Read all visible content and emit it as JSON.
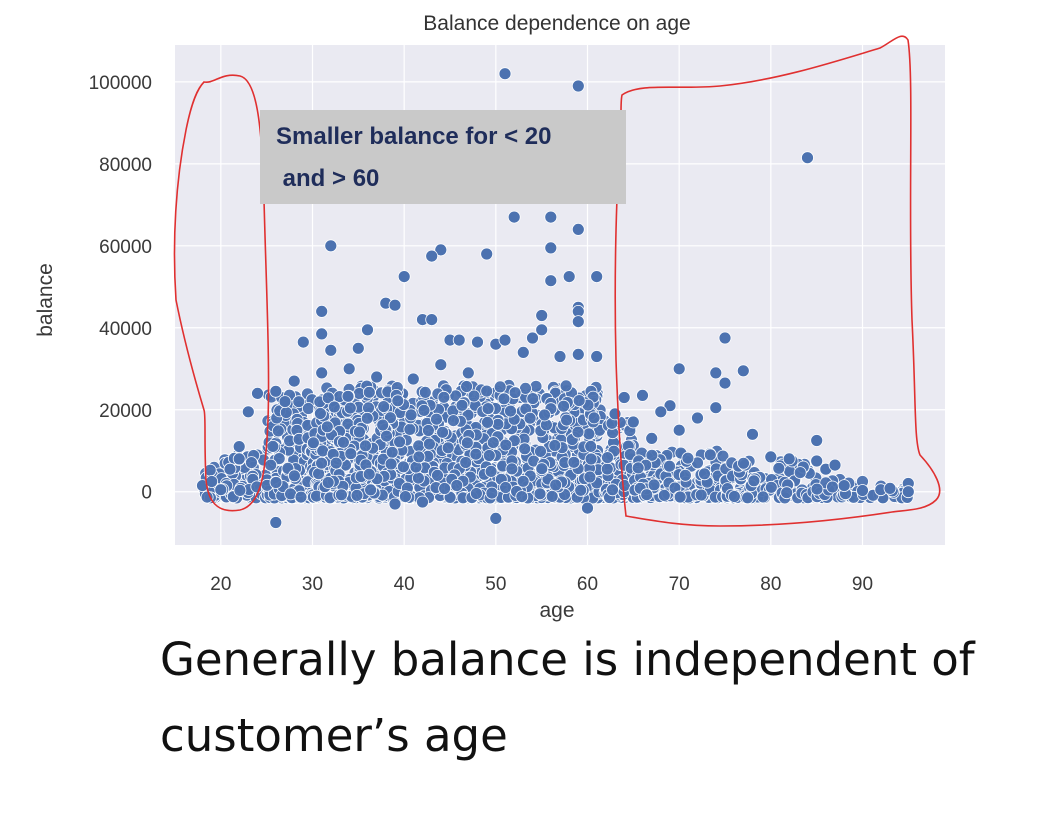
{
  "chart_data": {
    "type": "scatter",
    "title": "Balance dependence on age",
    "xlabel": "age",
    "ylabel": "balance",
    "xlim": [
      15,
      99
    ],
    "ylim": [
      -13000,
      109000
    ],
    "xticks": [
      20,
      30,
      40,
      50,
      60,
      70,
      80,
      90
    ],
    "yticks": [
      0,
      20000,
      40000,
      60000,
      80000,
      100000
    ],
    "grid": true,
    "background": "#eaeaf2",
    "marker_color": "#4c72b0",
    "dense_band": [
      {
        "age_from": 18,
        "age_to": 20,
        "balance_max": 6000
      },
      {
        "age_from": 20,
        "age_to": 25,
        "balance_max": 9000
      },
      {
        "age_from": 25,
        "age_to": 30,
        "balance_max": 24000
      },
      {
        "age_from": 30,
        "age_to": 62,
        "balance_max": 26000
      },
      {
        "age_from": 62,
        "age_to": 65,
        "balance_max": 17000
      },
      {
        "age_from": 65,
        "age_to": 75,
        "balance_max": 10000
      },
      {
        "age_from": 75,
        "age_to": 85,
        "balance_max": 7500
      },
      {
        "age_from": 85,
        "age_to": 90,
        "balance_max": 3000
      },
      {
        "age_from": 90,
        "age_to": 95,
        "balance_max": 1500
      }
    ],
    "points": [
      {
        "x": 51,
        "y": 102000
      },
      {
        "x": 59,
        "y": 99000
      },
      {
        "x": 84,
        "y": 81500
      },
      {
        "x": 52,
        "y": 67000
      },
      {
        "x": 56,
        "y": 67000
      },
      {
        "x": 59,
        "y": 64000
      },
      {
        "x": 32,
        "y": 60000
      },
      {
        "x": 44,
        "y": 59000
      },
      {
        "x": 56,
        "y": 59500
      },
      {
        "x": 43,
        "y": 57500
      },
      {
        "x": 49,
        "y": 58000
      },
      {
        "x": 40,
        "y": 52500
      },
      {
        "x": 56,
        "y": 51500
      },
      {
        "x": 58,
        "y": 52500
      },
      {
        "x": 61,
        "y": 52500
      },
      {
        "x": 59,
        "y": 45000
      },
      {
        "x": 59,
        "y": 44000
      },
      {
        "x": 59,
        "y": 41500
      },
      {
        "x": 38,
        "y": 46000
      },
      {
        "x": 39,
        "y": 45500
      },
      {
        "x": 42,
        "y": 42000
      },
      {
        "x": 43,
        "y": 42000
      },
      {
        "x": 55,
        "y": 43000
      },
      {
        "x": 31,
        "y": 44000
      },
      {
        "x": 36,
        "y": 39500
      },
      {
        "x": 55,
        "y": 39500
      },
      {
        "x": 31,
        "y": 38500
      },
      {
        "x": 54,
        "y": 37500
      },
      {
        "x": 29,
        "y": 36500
      },
      {
        "x": 35,
        "y": 35000
      },
      {
        "x": 32,
        "y": 34500
      },
      {
        "x": 45,
        "y": 37000
      },
      {
        "x": 46,
        "y": 37000
      },
      {
        "x": 48,
        "y": 36500
      },
      {
        "x": 50,
        "y": 36000
      },
      {
        "x": 51,
        "y": 37000
      },
      {
        "x": 53,
        "y": 34000
      },
      {
        "x": 57,
        "y": 33000
      },
      {
        "x": 59,
        "y": 33500
      },
      {
        "x": 61,
        "y": 33000
      },
      {
        "x": 75,
        "y": 37500
      },
      {
        "x": 70,
        "y": 30000
      },
      {
        "x": 74,
        "y": 29000
      },
      {
        "x": 75,
        "y": 26500
      },
      {
        "x": 77,
        "y": 29500
      },
      {
        "x": 74,
        "y": 20500
      },
      {
        "x": 72,
        "y": 18000
      },
      {
        "x": 69,
        "y": 21000
      },
      {
        "x": 68,
        "y": 19500
      },
      {
        "x": 66,
        "y": 23500
      },
      {
        "x": 64,
        "y": 23000
      },
      {
        "x": 63,
        "y": 19000
      },
      {
        "x": 65,
        "y": 17000
      },
      {
        "x": 70,
        "y": 15000
      },
      {
        "x": 78,
        "y": 14000
      },
      {
        "x": 85,
        "y": 12500
      },
      {
        "x": 67,
        "y": 13000
      },
      {
        "x": 23,
        "y": 19500
      },
      {
        "x": 24,
        "y": 24000
      },
      {
        "x": 26,
        "y": 24500
      },
      {
        "x": 27,
        "y": 22000
      },
      {
        "x": 28,
        "y": 27000
      },
      {
        "x": 31,
        "y": 29000
      },
      {
        "x": 34,
        "y": 30000
      },
      {
        "x": 37,
        "y": 28000
      },
      {
        "x": 41,
        "y": 27500
      },
      {
        "x": 44,
        "y": 31000
      },
      {
        "x": 47,
        "y": 29000
      },
      {
        "x": 26,
        "y": -7500
      },
      {
        "x": 50,
        "y": -6500
      },
      {
        "x": 60,
        "y": -4000
      },
      {
        "x": 39,
        "y": -3000
      },
      {
        "x": 42,
        "y": -2500
      },
      {
        "x": 92,
        "y": 500
      },
      {
        "x": 93,
        "y": 800
      },
      {
        "x": 95,
        "y": 2000
      },
      {
        "x": 95,
        "y": 0
      },
      {
        "x": 88,
        "y": 1500
      },
      {
        "x": 90,
        "y": 300
      },
      {
        "x": 86,
        "y": 5500
      },
      {
        "x": 82,
        "y": 8000
      },
      {
        "x": 80,
        "y": 8500
      },
      {
        "x": 85,
        "y": 7500
      },
      {
        "x": 87,
        "y": 6500
      },
      {
        "x": 18,
        "y": 1500
      },
      {
        "x": 19,
        "y": 2500
      },
      {
        "x": 20,
        "y": 500
      },
      {
        "x": 21,
        "y": 5500
      },
      {
        "x": 22,
        "y": 8000
      },
      {
        "x": 22,
        "y": 11000
      }
    ]
  },
  "annotation": {
    "line1": "Smaller balance for < 20",
    "line2": " and > 60"
  },
  "caption": {
    "text": "Generally balance is independent of customer’s age"
  },
  "colors": {
    "highlight_outline": "#e03030",
    "annotation_text": "#1f2d5a",
    "annotation_bg": "#c9c9c9"
  }
}
